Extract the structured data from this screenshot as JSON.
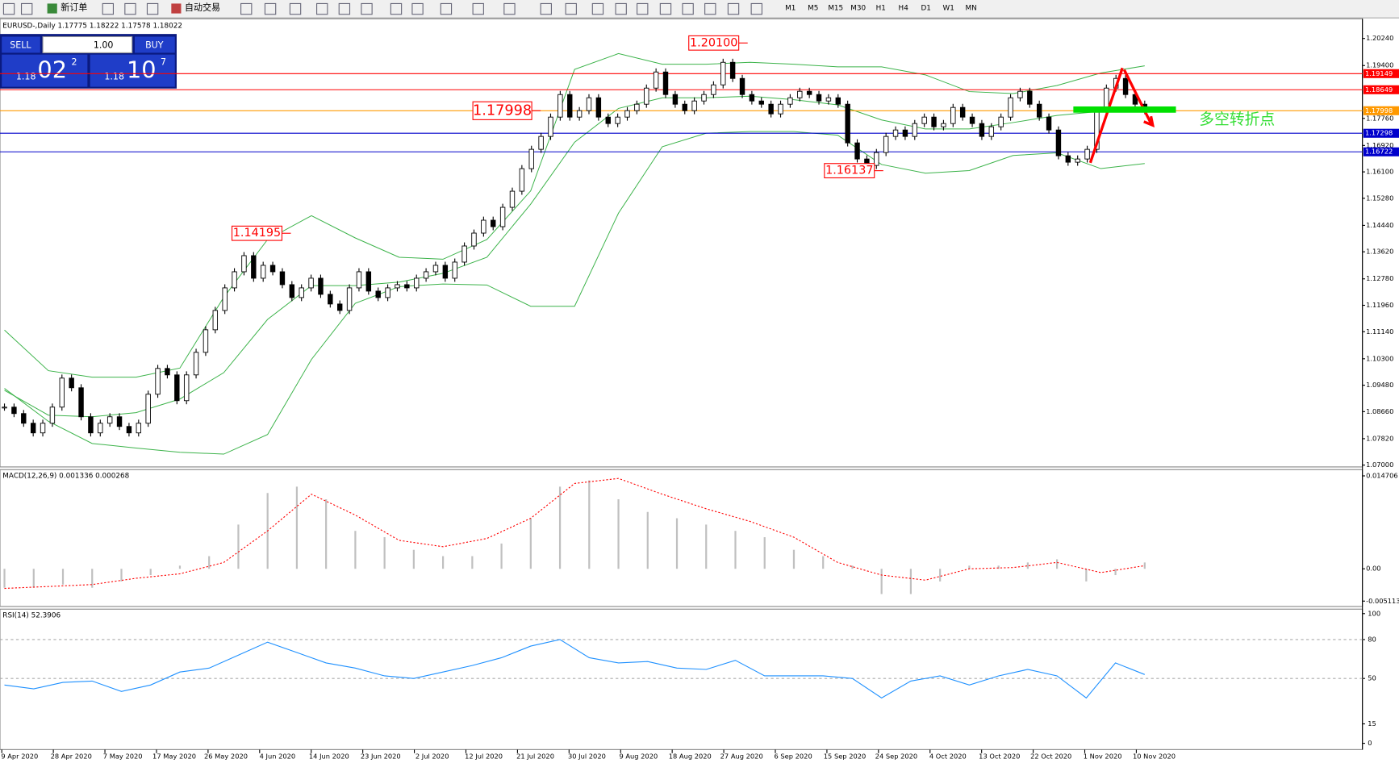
{
  "toolbar": {
    "buttons": [
      "新订单",
      "自动交易"
    ],
    "timeframes": [
      "M1",
      "M5",
      "M15",
      "M30",
      "H1",
      "H4",
      "D1",
      "W1",
      "MN"
    ]
  },
  "header": "EURUSD-,Daily  1.17775 1.18222 1.17578 1.18022",
  "trade_panel": {
    "sell": "SELL",
    "buy": "BUY",
    "lots": "1.00",
    "sell_price": {
      "prefix": "1.18",
      "main": "02",
      "sup": "2"
    },
    "buy_price": {
      "prefix": "1.18",
      "main": "10",
      "sup": "7"
    }
  },
  "note": "多空转折点",
  "x_axis_labels": [
    "9 Apr 2020",
    "28 Apr 2020",
    "7 May 2020",
    "17 May 2020",
    "26 May 2020",
    "4 Jun 2020",
    "14 Jun 2020",
    "23 Jun 2020",
    "2 Jul 2020",
    "12 Jul 2020",
    "21 Jul 2020",
    "30 Jul 2020",
    "9 Aug 2020",
    "18 Aug 2020",
    "27 Aug 2020",
    "6 Sep 2020",
    "15 Sep 2020",
    "24 Sep 2020",
    "4 Oct 2020",
    "13 Oct 2020",
    "22 Oct 2020",
    "1 Nov 2020",
    "10 Nov 2020"
  ],
  "chart_data": [
    {
      "type": "candlestick",
      "closes": [
        1.088,
        1.086,
        1.083,
        1.08,
        1.083,
        1.088,
        1.097,
        1.094,
        1.085,
        1.08,
        1.083,
        1.085,
        1.082,
        1.08,
        1.083,
        1.092,
        1.1,
        1.098,
        1.09,
        1.098,
        1.105,
        1.112,
        1.118,
        1.125,
        1.13,
        1.135,
        1.128,
        1.132,
        1.13,
        1.126,
        1.122,
        1.125,
        1.128,
        1.123,
        1.12,
        1.118,
        1.125,
        1.13,
        1.124,
        1.122,
        1.125,
        1.126,
        1.125,
        1.128,
        1.13,
        1.132,
        1.128,
        1.133,
        1.138,
        1.142,
        1.146,
        1.144,
        1.15,
        1.155,
        1.162,
        1.168,
        1.172,
        1.178,
        1.185,
        1.178,
        1.18,
        1.184,
        1.178,
        1.176,
        1.178,
        1.18,
        1.182,
        1.187,
        1.192,
        1.185,
        1.182,
        1.18,
        1.183,
        1.185,
        1.188,
        1.195,
        1.19,
        1.185,
        1.183,
        1.182,
        1.179,
        1.182,
        1.184,
        1.186,
        1.185,
        1.183,
        1.184,
        1.182,
        1.17,
        1.165,
        1.163,
        1.167,
        1.172,
        1.174,
        1.172,
        1.176,
        1.178,
        1.175,
        1.176,
        1.181,
        1.178,
        1.176,
        1.172,
        1.175,
        1.178,
        1.184,
        1.186,
        1.182,
        1.178,
        1.174,
        1.166,
        1.164,
        1.165,
        1.168,
        1.18,
        1.187,
        1.19,
        1.185,
        1.182,
        1.18
      ],
      "bands": {
        "color": "#3cb34a",
        "upper": [
          1.1119,
          1.0993,
          1.0973,
          1.0973,
          1.1001,
          1.1221,
          1.14,
          1.1474,
          1.1405,
          1.1345,
          1.1339,
          1.14,
          1.1551,
          1.1928,
          1.1977,
          1.1944,
          1.1944,
          1.195,
          1.1944,
          1.1936,
          1.1936,
          1.1911,
          1.1859,
          1.1853,
          1.1878,
          1.1917,
          1.1939
        ],
        "middle": [
          1.0932,
          1.0855,
          1.085,
          1.0863,
          1.0905,
          1.0987,
          1.1152,
          1.1257,
          1.1257,
          1.1268,
          1.1295,
          1.1345,
          1.151,
          1.1702,
          1.1807,
          1.184,
          1.184,
          1.1845,
          1.1834,
          1.1818,
          1.1771,
          1.1743,
          1.1743,
          1.1763,
          1.1785,
          1.1798,
          1.18
        ],
        "lower": [
          1.0938,
          1.0836,
          1.0767,
          1.0753,
          1.074,
          1.0734,
          1.0795,
          1.1028,
          1.1202,
          1.1254,
          1.1262,
          1.1259,
          1.1193,
          1.1193,
          1.1482,
          1.1688,
          1.173,
          1.1735,
          1.1735,
          1.1724,
          1.1633,
          1.1606,
          1.1614,
          1.1661,
          1.1669,
          1.162,
          1.1636
        ]
      },
      "levels": [
        {
          "value": 1.19149,
          "color": "#ff0000"
        },
        {
          "value": 1.18649,
          "color": "#ff0000"
        },
        {
          "value": 1.17998,
          "color": "#ff9900"
        },
        {
          "value": 1.17298,
          "color": "#0000cc"
        },
        {
          "value": 1.16722,
          "color": "#0000cc"
        }
      ],
      "annotations": [
        {
          "value": 1.201,
          "label": "1.20100"
        },
        {
          "value": 1.17998
        },
        {
          "value": 1.16137
        },
        {
          "value": 1.14195
        }
      ],
      "ylim": [
        1.06944,
        1.20823
      ],
      "yticks": [
        {
          "value": 1.2024,
          "label": "1.20240"
        },
        {
          "value": 1.194,
          "label": "1.19400"
        },
        {
          "value": 1.1776,
          "label": "1.17760"
        },
        {
          "value": 1.1692,
          "label": "1.16920"
        },
        {
          "value": 1.161,
          "label": "1.16100"
        },
        {
          "value": 1.1528,
          "label": "1.15280"
        },
        {
          "value": 1.1444,
          "label": "1.14440"
        },
        {
          "value": 1.1362,
          "label": "1.13620"
        },
        {
          "value": 1.1278,
          "label": "1.12780"
        },
        {
          "value": 1.1196,
          "label": "1.11960"
        },
        {
          "value": 1.1114,
          "label": "1.11140"
        },
        {
          "value": 1.103,
          "label": "1.10300"
        },
        {
          "value": 1.0948,
          "label": "1.09480"
        },
        {
          "value": 1.0866,
          "label": "1.08660"
        },
        {
          "value": 1.0782,
          "label": "1.07820"
        },
        {
          "value": 1.07,
          "label": "1.07000"
        }
      ]
    },
    {
      "type": "macd",
      "title": "MACD(12,26,9) 0.001336 0.000268",
      "histogram": [
        -0.003,
        -0.003,
        -0.0025,
        -0.003,
        -0.002,
        -0.001,
        0.0005,
        0.002,
        0.007,
        0.012,
        0.013,
        0.011,
        0.006,
        0.005,
        0.003,
        0.002,
        0.002,
        0.004,
        0.008,
        0.013,
        0.014,
        0.011,
        0.009,
        0.008,
        0.007,
        0.006,
        0.005,
        0.003,
        0.002,
        0.0005,
        -0.004,
        -0.004,
        -0.002,
        0.0005,
        0.0005,
        0.001,
        0.0015,
        -0.002,
        -0.001,
        0.001
      ],
      "signal": [
        -0.0031,
        -0.0028,
        -0.0025,
        -0.0015,
        -0.0008,
        0.001,
        0.006,
        0.0118,
        0.0085,
        0.0045,
        0.0035,
        0.0048,
        0.008,
        0.0135,
        0.0143,
        0.0118,
        0.0095,
        0.0075,
        0.005,
        0.001,
        -0.001,
        -0.0018,
        0.0,
        0.0002,
        0.001,
        -0.0006,
        0.0005
      ],
      "hist_color": "#c0c0c0",
      "signal_color": "#ff0000",
      "ylim": [
        -0.005113,
        0.014706
      ],
      "yticks": [
        {
          "value": 0.014706,
          "label": "0.014706"
        },
        {
          "value": 0,
          "label": "0.00"
        },
        {
          "value": -0.005113,
          "label": "-0.005113"
        }
      ]
    },
    {
      "type": "line",
      "title": "RSI(14) 52.3906",
      "color": "#1e90ff",
      "values": [
        45,
        42,
        47,
        48,
        40,
        45,
        55,
        58,
        68,
        78,
        70,
        62,
        58,
        52,
        50,
        55,
        60,
        66,
        75,
        80,
        66,
        62,
        63,
        58,
        57,
        64,
        52,
        52,
        52,
        50,
        35,
        48,
        52,
        45,
        52,
        57,
        52,
        35,
        62,
        53
      ],
      "levels": [
        80,
        50
      ],
      "ylim": [
        0,
        100
      ],
      "yticks": [
        100,
        80,
        50,
        15,
        0
      ]
    }
  ]
}
